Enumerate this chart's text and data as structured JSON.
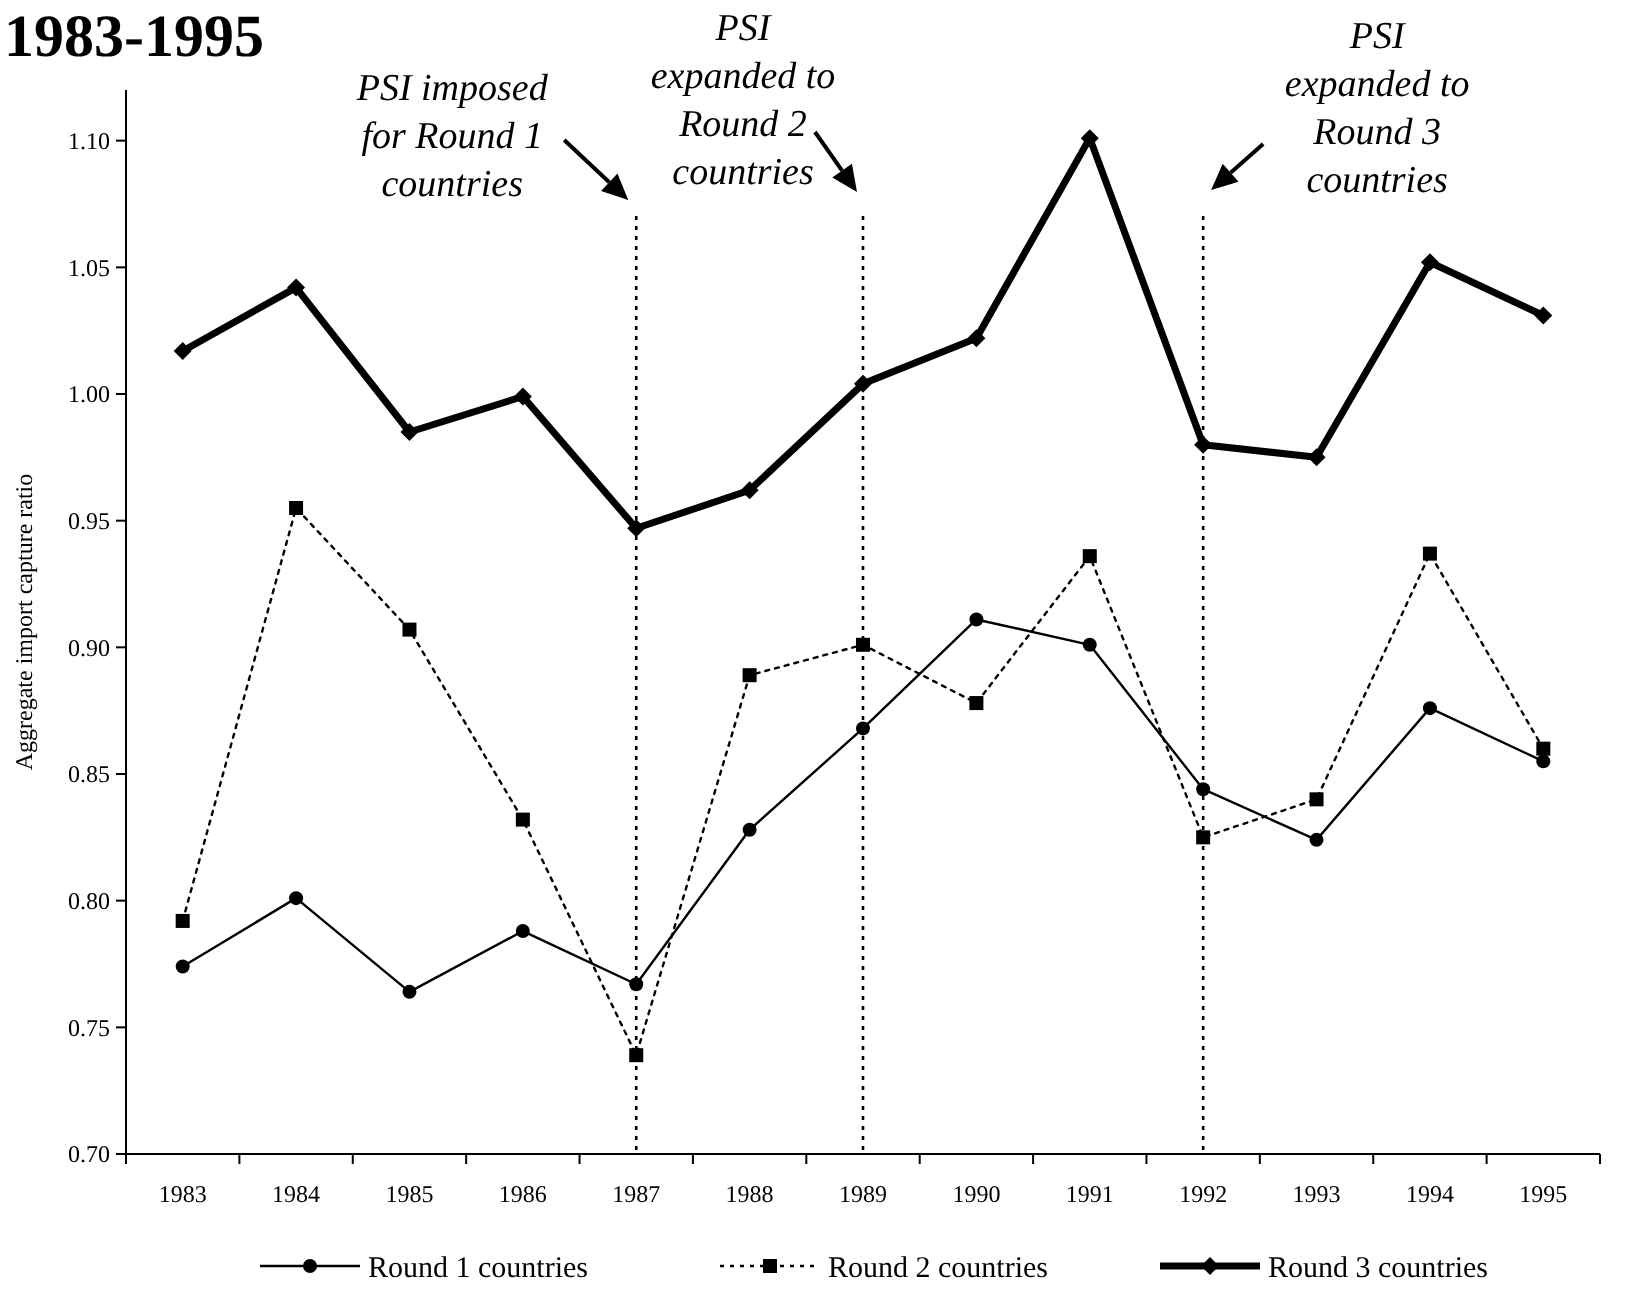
{
  "chart_data": {
    "type": "line",
    "title": "1983-1995",
    "ylabel": "Aggregate import capture ratio",
    "categories": [
      "1983",
      "1984",
      "1985",
      "1986",
      "1987",
      "1988",
      "1989",
      "1990",
      "1991",
      "1992",
      "1993",
      "1994",
      "1995"
    ],
    "ylim": [
      0.7,
      1.12
    ],
    "yticks": [
      {
        "value": 0.7,
        "label": "0.70"
      },
      {
        "value": 0.75,
        "label": "0.75"
      },
      {
        "value": 0.8,
        "label": "0.80"
      },
      {
        "value": 0.85,
        "label": "0.85"
      },
      {
        "value": 0.9,
        "label": "0.90"
      },
      {
        "value": 0.95,
        "label": "0.95"
      },
      {
        "value": 1.0,
        "label": "1.00"
      },
      {
        "value": 1.05,
        "label": "1.05"
      },
      {
        "value": 1.1,
        "label": "1.10"
      }
    ],
    "grid": false,
    "legend": "bottom",
    "series": [
      {
        "name": "Round 1 countries",
        "color": "#000000",
        "marker": "circle",
        "line_style": "solid",
        "values": [
          0.774,
          0.801,
          0.764,
          0.788,
          0.767,
          0.828,
          0.868,
          0.911,
          0.901,
          0.844,
          0.824,
          0.876,
          0.855
        ]
      },
      {
        "name": "Round 2 countries",
        "color": "#000000",
        "marker": "square",
        "line_style": "dotted",
        "values": [
          0.792,
          0.955,
          0.907,
          0.832,
          0.739,
          0.889,
          0.901,
          0.878,
          0.936,
          0.825,
          0.84,
          0.937,
          0.86
        ]
      },
      {
        "name": "Round 3 countries",
        "color": "#000000",
        "marker": "diamond",
        "line_style": "solid",
        "values": [
          1.017,
          1.042,
          0.985,
          0.999,
          0.947,
          0.962,
          1.004,
          1.022,
          1.101,
          0.98,
          0.975,
          1.052,
          1.031
        ]
      }
    ],
    "ref_lines": [
      {
        "axis": "x",
        "value": "1987",
        "label": "PSI imposed for Round 1 countries",
        "line_style": "dotted"
      },
      {
        "axis": "x",
        "value": "1989",
        "label": "PSI expanded to Round 2 countries",
        "line_style": "dotted"
      },
      {
        "axis": "x",
        "value": "1992",
        "label": "PSI expanded to Round 3 countries",
        "line_style": "dotted"
      }
    ]
  }
}
